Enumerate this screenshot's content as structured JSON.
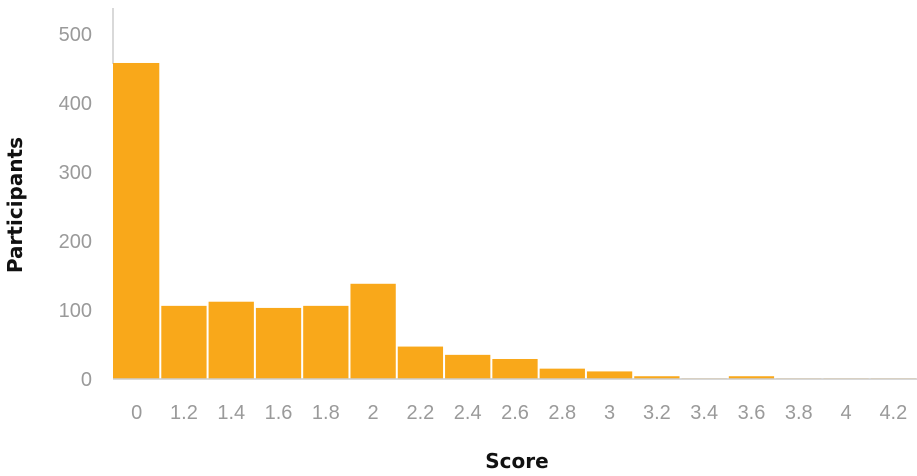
{
  "chart_data": {
    "type": "bar",
    "categories": [
      "0",
      "1.2",
      "1.4",
      "1.6",
      "1.8",
      "2",
      "2.2",
      "2.4",
      "2.6",
      "2.8",
      "3",
      "3.2",
      "3.4",
      "3.6",
      "3.8",
      "4",
      "4.2"
    ],
    "values": [
      458,
      106,
      112,
      103,
      106,
      138,
      47,
      35,
      29,
      15,
      11,
      4,
      1,
      4,
      1,
      1,
      1
    ],
    "xlabel": "Score",
    "ylabel": "Participants",
    "ylim": [
      0,
      500
    ],
    "yticks": [
      0,
      100,
      200,
      300,
      400,
      500
    ],
    "grid": false,
    "legend": "none",
    "bar_color": "#f9a81a",
    "axis_color": "#cccccc"
  }
}
